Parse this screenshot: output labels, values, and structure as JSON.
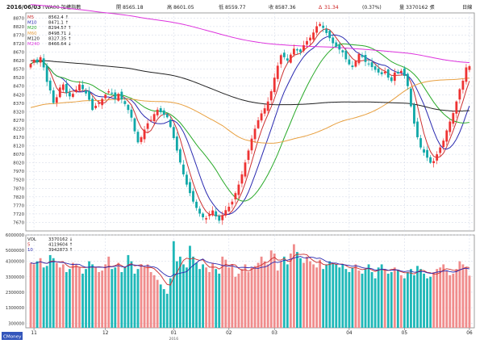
{
  "header": {
    "date": "2016/06/03",
    "symbol": "TWA00 加權指數",
    "open_label": "開",
    "open_value": "8565.18",
    "high_label": "高",
    "high_value": "8601.05",
    "low_label": "低",
    "low_value": "8559.77",
    "close_label": "收",
    "close_value": "8587.36",
    "change_label": "Δ",
    "change_value": "31.34",
    "pct": "(0.37%)",
    "vol_label": "量",
    "vol_value": "3370162 張",
    "period": "日線"
  },
  "colors": {
    "up": "#ee3333",
    "down": "#11a8a8",
    "vol_up": "#f08c8c",
    "vol_down": "#1fb8b8",
    "ma5": "#cc3030",
    "ma10": "#2a2ab0",
    "ma20": "#2aaa2a",
    "ma60": "#e8a040",
    "ma120": "#222222",
    "ma240": "#dd33dd",
    "grid": "#cfd6e6",
    "frame": "#888888"
  },
  "watermark": "CMoney",
  "chart_data": [
    {
      "type": "candlestick",
      "title": "",
      "ylim": [
        7620,
        8900
      ],
      "yticks": [
        8870,
        8820,
        8770,
        8720,
        8670,
        8620,
        8570,
        8520,
        8470,
        8420,
        8370,
        8320,
        8270,
        8220,
        8170,
        8120,
        8070,
        8020,
        7970,
        7920,
        7870,
        7820,
        7770,
        7720,
        7670
      ],
      "xticks": [
        {
          "label": "11",
          "index": 1
        },
        {
          "label": "12",
          "index": 23
        },
        {
          "label": "01",
          "index": 44
        },
        {
          "label": "02",
          "index": 61
        },
        {
          "label": "03",
          "index": 75
        },
        {
          "label": "04",
          "index": 98
        },
        {
          "label": "05",
          "index": 115
        },
        {
          "label": "06",
          "index": 135
        }
      ],
      "x_sublabel": {
        "label": "2016",
        "index": 44
      },
      "grid": true,
      "legend": [
        {
          "name": "M5",
          "value": "8562.4 ↑"
        },
        {
          "name": "M10",
          "value": "8471.1 ↑"
        },
        {
          "name": "M20",
          "value": "8294.57 ↑"
        },
        {
          "name": "M60",
          "value": "8498.71 ↓"
        },
        {
          "name": "M120",
          "value": "8327.35 ↑"
        },
        {
          "name": "M240",
          "value": "8466.64 ↓"
        }
      ],
      "closes": [
        8600,
        8625,
        8610,
        8640,
        8580,
        8495,
        8445,
        8372,
        8405,
        8462,
        8480,
        8430,
        8410,
        8425,
        8450,
        8480,
        8452,
        8427,
        8390,
        8330,
        8355,
        8372,
        8395,
        8420,
        8440,
        8425,
        8395,
        8425,
        8392,
        8365,
        8330,
        8285,
        8205,
        8140,
        8170,
        8215,
        8252,
        8272,
        8306,
        8332,
        8317,
        8302,
        8287,
        8230,
        8165,
        8092,
        8022,
        7952,
        7892,
        7842,
        7792,
        7755,
        7722,
        7700,
        7695,
        7718,
        7740,
        7705,
        7680,
        7710,
        7742,
        7762,
        7792,
        7842,
        7892,
        7952,
        8022,
        8092,
        8162,
        8220,
        8270,
        8310,
        8340,
        8380,
        8440,
        8520,
        8590,
        8652,
        8640,
        8620,
        8655,
        8690,
        8680,
        8670,
        8710,
        8735,
        8755,
        8785,
        8822,
        8835,
        8812,
        8782,
        8752,
        8722,
        8702,
        8685,
        8668,
        8628,
        8598,
        8582,
        8618,
        8658,
        8642,
        8612,
        8598,
        8582,
        8566,
        8550,
        8540,
        8555,
        8520,
        8500,
        8550,
        8545,
        8560,
        8530,
        8470,
        8352,
        8250,
        8170,
        8110,
        8080,
        8050,
        8020,
        8030,
        8070,
        8110,
        8150,
        8210,
        8262,
        8312,
        8380,
        8452,
        8502,
        8580,
        8587
      ]
    },
    {
      "type": "bar",
      "title": "",
      "ylim": [
        0,
        6000000
      ],
      "yticks": [
        6000000,
        5000000,
        4300000,
        3300000,
        2300000,
        1300000,
        300000
      ],
      "ytick_labels": [
        "6000000",
        "5000000",
        "4300000",
        "3300000",
        "2300000",
        "1300000",
        "300000"
      ],
      "legend": [
        {
          "name": "VOL",
          "value": "3370162 ↓"
        },
        {
          "name": "5",
          "value": "4119604 ↑"
        },
        {
          "name": "10",
          "value": "3942873 ↑"
        }
      ],
      "values": [
        4200000,
        4100000,
        4300000,
        4500000,
        3900000,
        4000000,
        4700000,
        4500000,
        4200000,
        3900000,
        4100000,
        3600000,
        3800000,
        4200000,
        4100000,
        3900000,
        3500000,
        3800000,
        4300000,
        4100000,
        3900000,
        3600000,
        3700000,
        4100000,
        4600000,
        3800000,
        3900000,
        4200000,
        3600000,
        3900000,
        4700000,
        4300000,
        3500000,
        3800000,
        4100000,
        3900000,
        4100000,
        3600000,
        3400000,
        3100000,
        2800000,
        2500000,
        2200000,
        3200000,
        5600000,
        4300000,
        4600000,
        4100000,
        3900000,
        5300000,
        4600000,
        4200000,
        3800000,
        4100000,
        3900000,
        3600000,
        4200000,
        3800000,
        3500000,
        4600000,
        4400000,
        3900000,
        4100000,
        3300000,
        3500000,
        3800000,
        4100000,
        3600000,
        3900000,
        4000000,
        4200000,
        4600000,
        4300000,
        4100000,
        5000000,
        4800000,
        3700000,
        4300000,
        4600000,
        4100000,
        4800000,
        5400000,
        4900000,
        4500000,
        4200000,
        4600000,
        4300000,
        4100000,
        3900000,
        4400000,
        3800000,
        4100000,
        4300000,
        4200000,
        4100000,
        3900000,
        4100000,
        3800000,
        3600000,
        3900000,
        4100000,
        3700000,
        3500000,
        3800000,
        4100000,
        3600000,
        3200000,
        3900000,
        4100000,
        3800000,
        3500000,
        3600000,
        3900000,
        3700000,
        3400000,
        3200000,
        3600000,
        3800000,
        3400000,
        4000000,
        3800000,
        3500000,
        3200000,
        3300000,
        3600000,
        3800000,
        3900000,
        4100000,
        3700000,
        3400000,
        3500000,
        3800000,
        4300000,
        4100000,
        3900000,
        3370162
      ]
    }
  ]
}
